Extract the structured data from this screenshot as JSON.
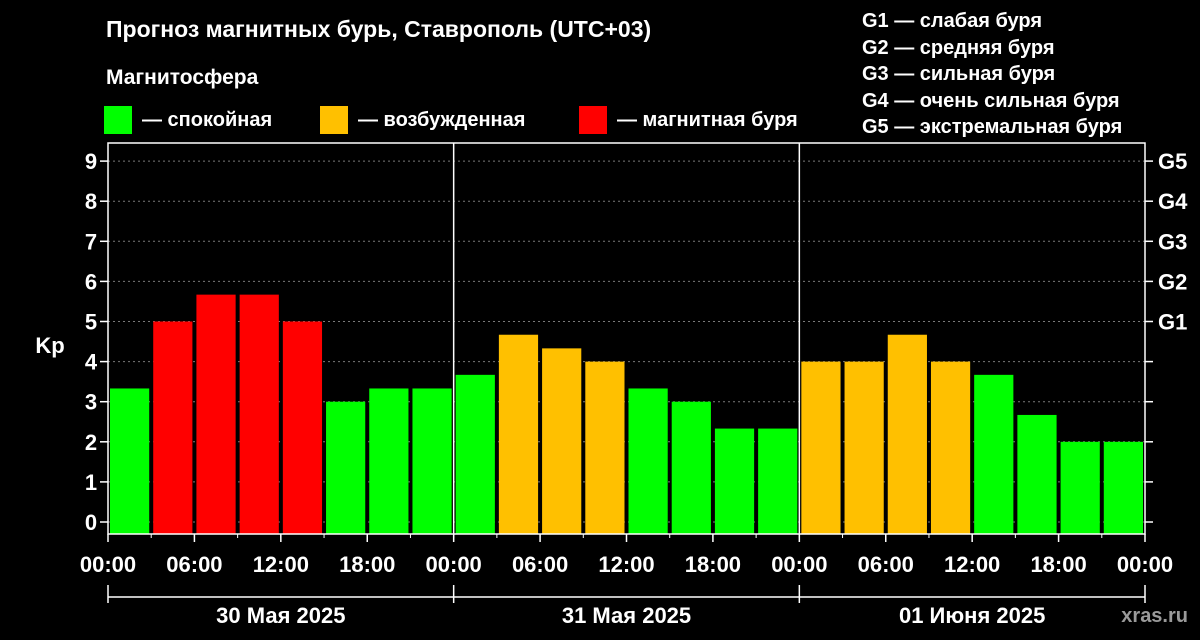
{
  "header": {
    "title": "Прогноз магнитных бурь, Ставрополь (UTC+03)",
    "subtitle": "Магнитосфера"
  },
  "legend": [
    {
      "label": "— спокойная",
      "color": "#00ff00"
    },
    {
      "label": "— возбужденная",
      "color": "#ffc000"
    },
    {
      "label": "— магнитная буря",
      "color": "#ff0000"
    }
  ],
  "g_levels": [
    "G1 — слабая буря",
    "G2 — средняя буря",
    "G3 — сильная буря",
    "G4 — очень сильная буря",
    "G5 — экстремальная буря"
  ],
  "watermark": "xras.ru",
  "chart_data": {
    "type": "bar",
    "ylabel": "Kp",
    "ylim": [
      0,
      9
    ],
    "yticks": [
      "0",
      "1",
      "2",
      "3",
      "4",
      "5",
      "6",
      "7",
      "8",
      "9"
    ],
    "right_ticks": [
      {
        "label": "G1",
        "kp": 5
      },
      {
        "label": "G2",
        "kp": 6
      },
      {
        "label": "G3",
        "kp": 7
      },
      {
        "label": "G4",
        "kp": 8
      },
      {
        "label": "G5",
        "kp": 9
      }
    ],
    "grid": "dashed horizontal",
    "x_ticks": [
      "00:00",
      "06:00",
      "12:00",
      "18:00",
      "00:00",
      "06:00",
      "12:00",
      "18:00",
      "00:00",
      "06:00",
      "12:00",
      "18:00",
      "00:00"
    ],
    "days": [
      "30 Мая 2025",
      "31 Мая 2025",
      "01 Июня 2025"
    ],
    "bars": [
      {
        "day": 0,
        "slot": 0,
        "value": 3.33,
        "level": "calm"
      },
      {
        "day": 0,
        "slot": 1,
        "value": 5.0,
        "level": "storm"
      },
      {
        "day": 0,
        "slot": 2,
        "value": 5.67,
        "level": "storm"
      },
      {
        "day": 0,
        "slot": 3,
        "value": 5.67,
        "level": "storm"
      },
      {
        "day": 0,
        "slot": 4,
        "value": 5.0,
        "level": "storm"
      },
      {
        "day": 0,
        "slot": 5,
        "value": 3.0,
        "level": "calm"
      },
      {
        "day": 0,
        "slot": 6,
        "value": 3.33,
        "level": "calm"
      },
      {
        "day": 0,
        "slot": 7,
        "value": 3.33,
        "level": "calm"
      },
      {
        "day": 1,
        "slot": 0,
        "value": 3.67,
        "level": "calm"
      },
      {
        "day": 1,
        "slot": 1,
        "value": 4.67,
        "level": "active"
      },
      {
        "day": 1,
        "slot": 2,
        "value": 4.33,
        "level": "active"
      },
      {
        "day": 1,
        "slot": 3,
        "value": 4.0,
        "level": "active"
      },
      {
        "day": 1,
        "slot": 4,
        "value": 3.33,
        "level": "calm"
      },
      {
        "day": 1,
        "slot": 5,
        "value": 3.0,
        "level": "calm"
      },
      {
        "day": 1,
        "slot": 6,
        "value": 2.33,
        "level": "calm"
      },
      {
        "day": 1,
        "slot": 7,
        "value": 2.33,
        "level": "calm"
      },
      {
        "day": 2,
        "slot": 0,
        "value": 4.0,
        "level": "active"
      },
      {
        "day": 2,
        "slot": 1,
        "value": 4.0,
        "level": "active"
      },
      {
        "day": 2,
        "slot": 2,
        "value": 4.67,
        "level": "active"
      },
      {
        "day": 2,
        "slot": 3,
        "value": 4.0,
        "level": "active"
      },
      {
        "day": 2,
        "slot": 4,
        "value": 3.67,
        "level": "calm"
      },
      {
        "day": 2,
        "slot": 5,
        "value": 2.67,
        "level": "calm"
      },
      {
        "day": 2,
        "slot": 6,
        "value": 2.0,
        "level": "calm"
      },
      {
        "day": 2,
        "slot": 7,
        "value": 2.0,
        "level": "calm"
      }
    ],
    "level_colors": {
      "calm": "#00ff00",
      "active": "#ffc000",
      "storm": "#ff0000"
    }
  }
}
